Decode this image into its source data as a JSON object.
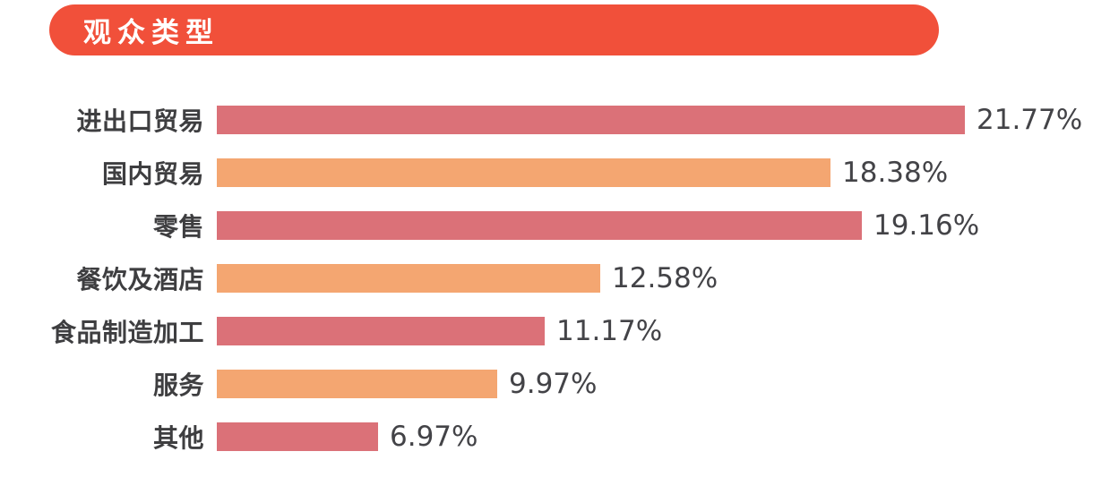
{
  "page": {
    "background": "#ffffff"
  },
  "header": {
    "title": "观众类型",
    "background_color": "#F1503A",
    "text_color": "#ffffff"
  },
  "colors": {
    "red_bar": "#DB7178",
    "orange_bar": "#F4A671",
    "category_text": "#3E3E40",
    "value_text": "#434347"
  },
  "chart_data": {
    "type": "bar",
    "orientation": "horizontal",
    "title": "观众类型",
    "categories": [
      "进出口贸易",
      "国内贸易",
      "零售",
      "餐饮及酒店",
      "食品制造加工",
      "服务",
      "其他"
    ],
    "values": [
      21.77,
      18.38,
      19.16,
      12.58,
      11.17,
      9.97,
      6.97
    ],
    "value_labels": [
      "21.77%",
      "18.38%",
      "19.16%",
      "12.58%",
      "11.17%",
      "9.97%",
      "6.97%"
    ],
    "bar_colors": [
      "#DB7178",
      "#F4A671",
      "#DB7178",
      "#F4A671",
      "#DB7178",
      "#F4A671",
      "#DB7178"
    ],
    "xlim": [
      2.9,
      21.77
    ],
    "grid": false,
    "legend": false,
    "xlabel": "",
    "ylabel": ""
  }
}
